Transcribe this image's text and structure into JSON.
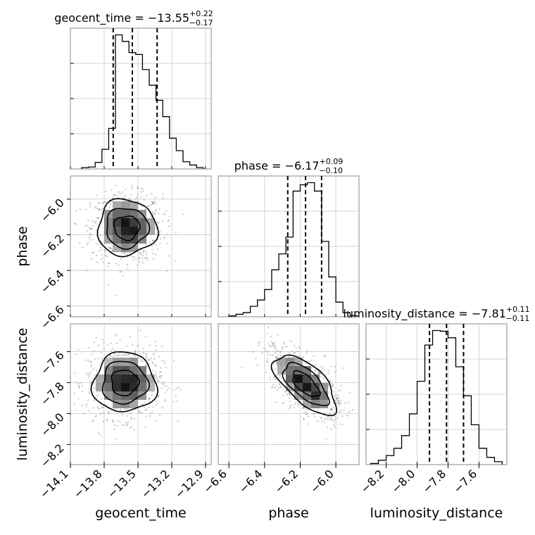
{
  "chart_data": {
    "type": "corner",
    "grid": true,
    "parameters": [
      "geocent_time",
      "phase",
      "luminosity_distance"
    ],
    "axis_labels": {
      "geocent_time": "geocent_time",
      "phase": "phase",
      "luminosity_distance": "luminosity_distance"
    },
    "ranges": {
      "geocent_time": [
        -14.1,
        -12.85
      ],
      "phase": [
        -6.66,
        -5.87
      ],
      "luminosity_distance": [
        -8.33,
        -7.42
      ]
    },
    "ticks": {
      "geocent_time": [
        -14.1,
        -13.8,
        -13.5,
        -13.2,
        -12.9
      ],
      "phase": [
        -6.6,
        -6.4,
        -6.2,
        -6.0
      ],
      "luminosity_distance": [
        -8.2,
        -8.0,
        -7.8,
        -7.6
      ]
    },
    "tick_labels": {
      "geocent_time": [
        "−14.1",
        "−13.8",
        "−13.5",
        "−13.2",
        "−12.9"
      ],
      "phase": [
        "−6.6",
        "−6.4",
        "−6.2",
        "−6.0"
      ],
      "luminosity_distance": [
        "−8.2",
        "−8.0",
        "−7.8",
        "−7.6"
      ]
    },
    "titles": [
      {
        "param": "geocent_time",
        "prefix": "geocent_time = −13.55",
        "plus": "+0.22",
        "minus": "−0.17"
      },
      {
        "param": "phase",
        "prefix": "phase = −6.17",
        "plus": "+0.09",
        "minus": "−0.10"
      },
      {
        "param": "luminosity_distance",
        "prefix": "luminosity_distance = −7.81",
        "plus": "+0.11",
        "minus": "−0.11"
      }
    ],
    "quantiles": {
      "geocent_time": [
        -13.72,
        -13.55,
        -13.33
      ],
      "phase": [
        -6.27,
        -6.17,
        -6.08
      ],
      "luminosity_distance": [
        -7.92,
        -7.81,
        -7.7
      ]
    },
    "histograms": {
      "geocent_time": {
        "bins": [
          -14.0,
          -13.94,
          -13.88,
          -13.82,
          -13.76,
          -13.7,
          -13.64,
          -13.58,
          -13.52,
          -13.46,
          -13.4,
          -13.34,
          -13.28,
          -13.22,
          -13.16,
          -13.1,
          -13.04,
          -12.98,
          -12.92
        ],
        "counts": [
          2,
          3,
          10,
          30,
          62,
          205,
          195,
          178,
          175,
          152,
          128,
          105,
          80,
          47,
          28,
          11,
          6,
          2
        ]
      },
      "phase": {
        "bins": [
          -6.6,
          -6.56,
          -6.52,
          -6.48,
          -6.44,
          -6.4,
          -6.36,
          -6.32,
          -6.28,
          -6.24,
          -6.2,
          -6.16,
          -6.12,
          -6.08,
          -6.04,
          -6.0,
          -5.96,
          -5.92,
          -5.88
        ],
        "counts": [
          2,
          6,
          10,
          25,
          40,
          65,
          112,
          150,
          190,
          300,
          315,
          320,
          300,
          180,
          95,
          35,
          10,
          3
        ]
      },
      "luminosity_distance": {
        "bins": [
          -8.3,
          -8.25,
          -8.2,
          -8.15,
          -8.1,
          -8.05,
          -8.0,
          -7.95,
          -7.9,
          -7.85,
          -7.8,
          -7.75,
          -7.7,
          -7.65,
          -7.6,
          -7.55,
          -7.5,
          -7.45
        ],
        "counts": [
          3,
          12,
          25,
          45,
          80,
          140,
          230,
          330,
          370,
          368,
          350,
          270,
          190,
          110,
          45,
          20,
          8
        ]
      }
    },
    "density_2d": [
      {
        "x": "geocent_time",
        "y": "phase",
        "center": [
          -13.6,
          -6.16
        ],
        "sd": [
          0.15,
          0.09
        ],
        "rho": 0.0
      },
      {
        "x": "geocent_time",
        "y": "luminosity_distance",
        "center": [
          -13.62,
          -7.8
        ],
        "sd": [
          0.16,
          0.11
        ],
        "rho": 0.0
      },
      {
        "x": "phase",
        "y": "luminosity_distance",
        "center": [
          -6.17,
          -7.81
        ],
        "sd": [
          0.1,
          0.11
        ],
        "rho": -0.65
      }
    ]
  }
}
